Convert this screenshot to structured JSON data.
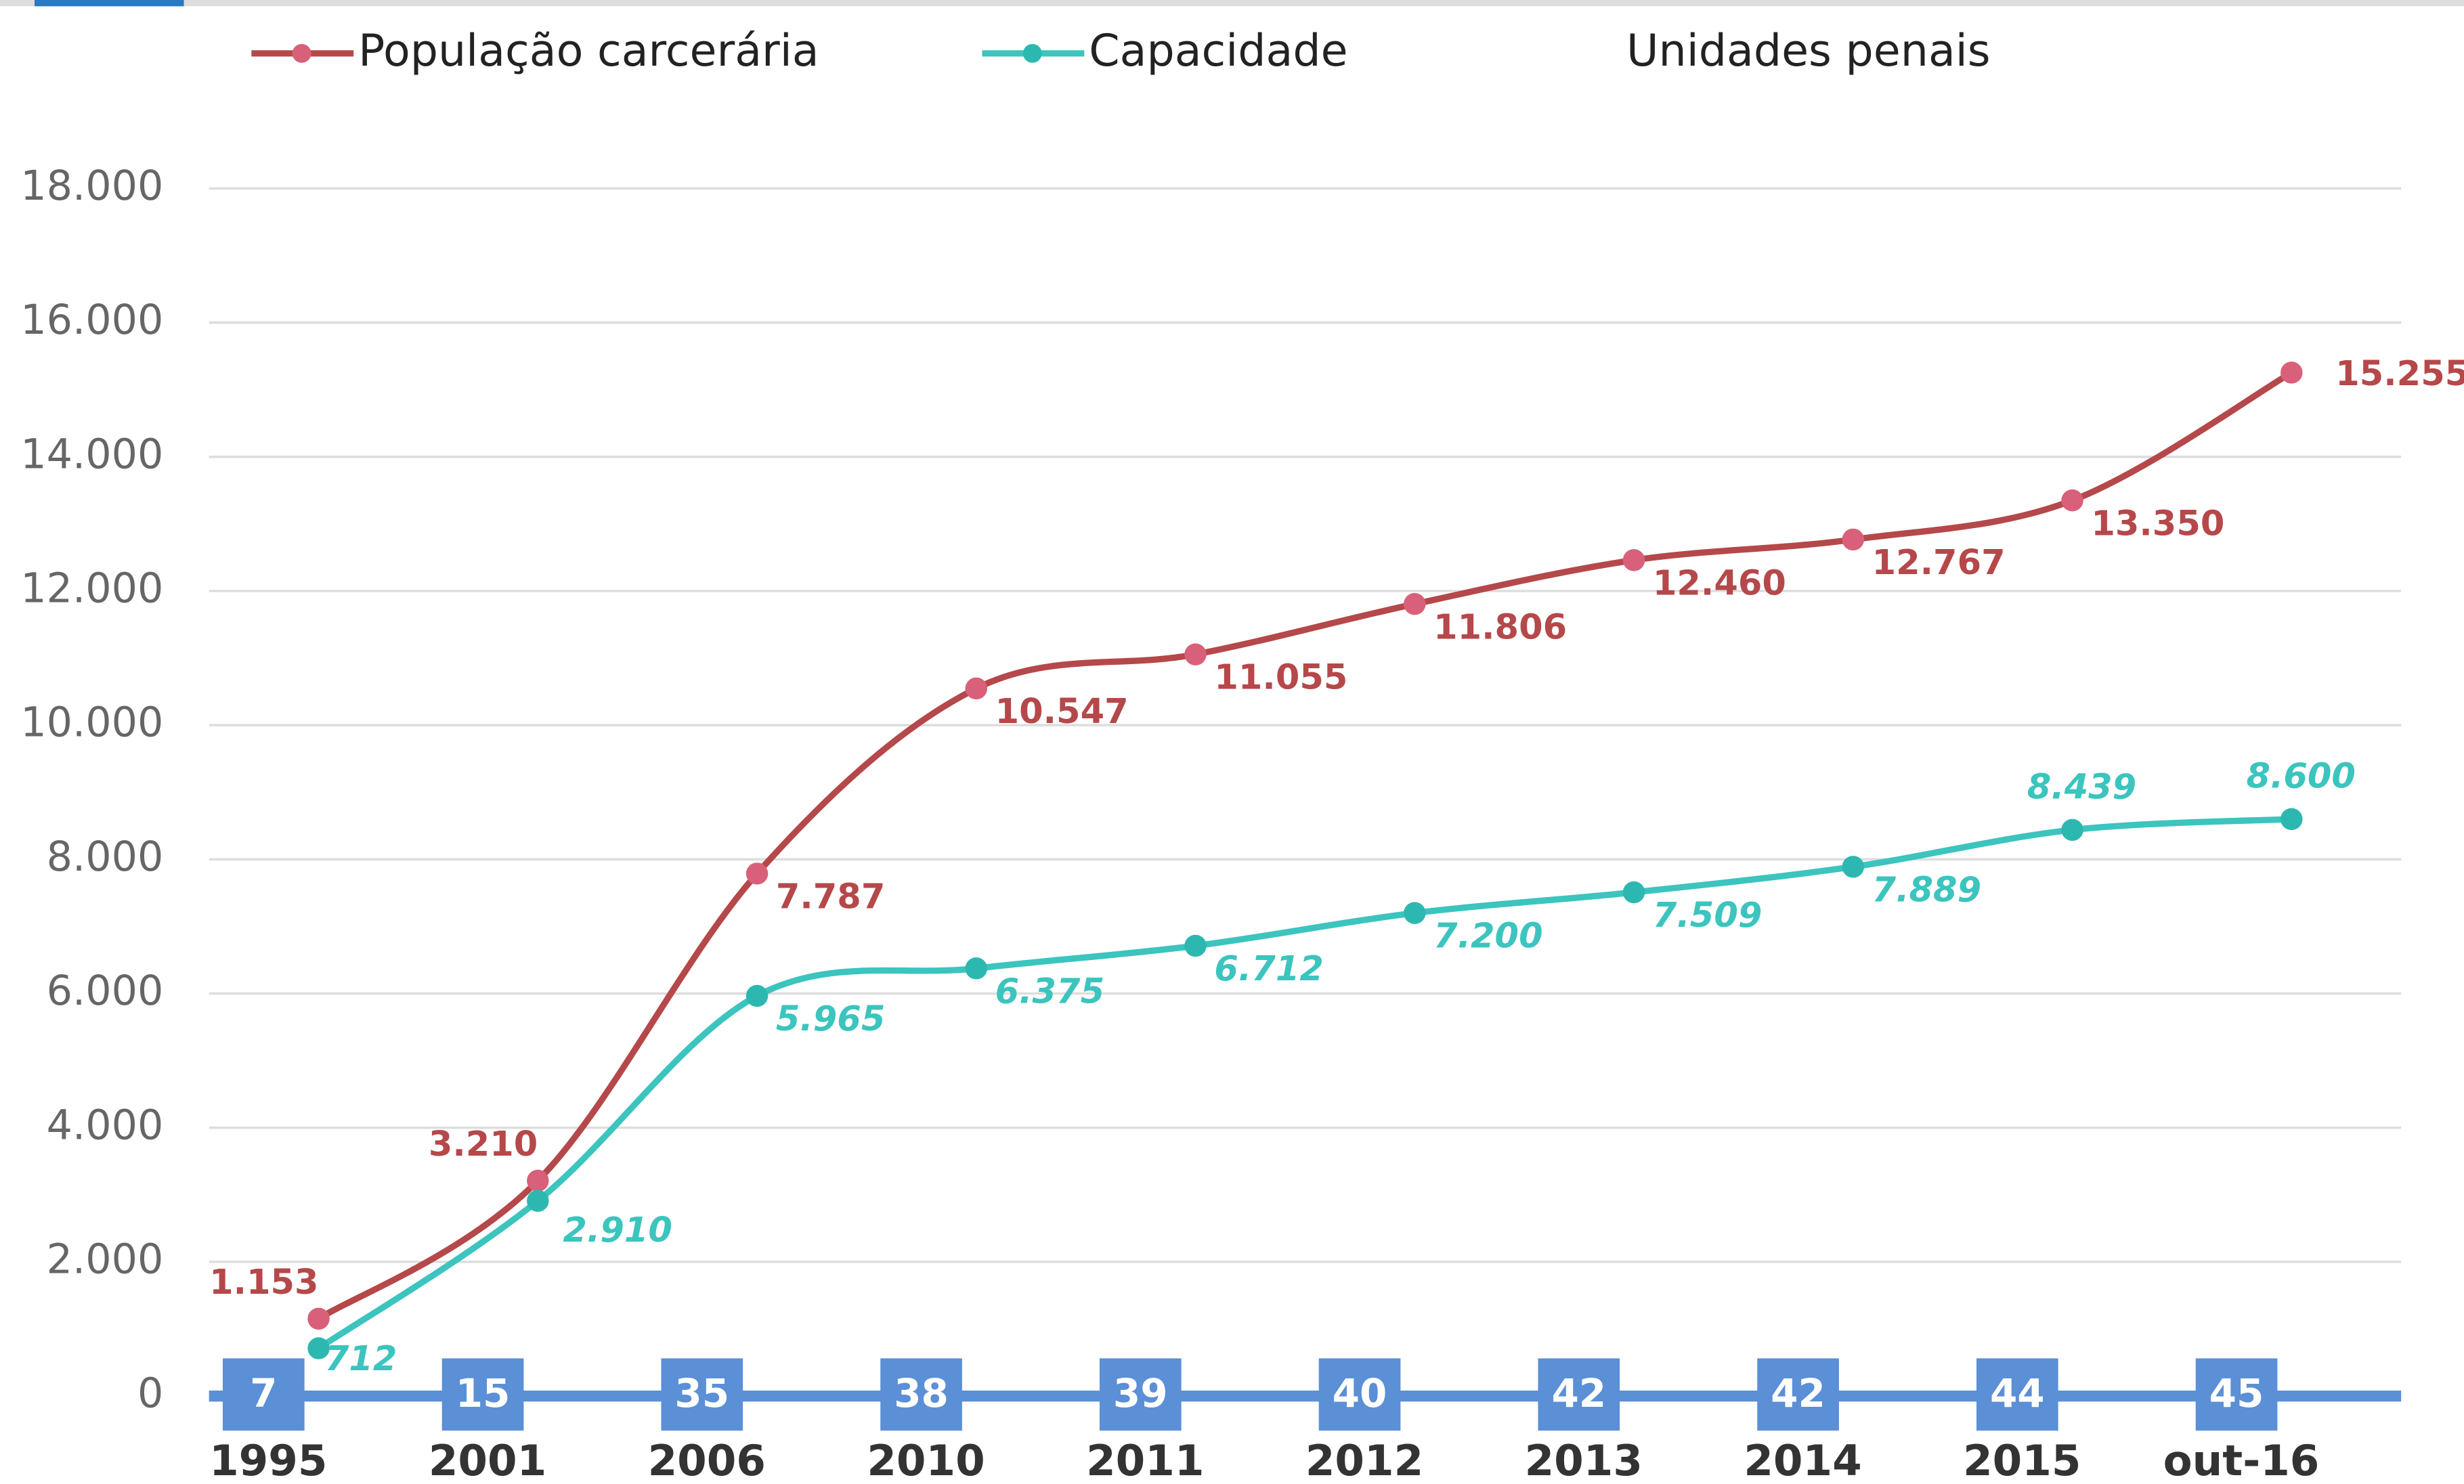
{
  "chart_data": {
    "type": "line",
    "categories": [
      "1995",
      "2001",
      "2006",
      "2010",
      "2011",
      "2012",
      "2013",
      "2014",
      "2015",
      "out-16"
    ],
    "series": [
      {
        "name": "População carcerária",
        "color": "#b5484a",
        "marker_color": "#d9607a",
        "values": [
          1153,
          3210,
          7787,
          10547,
          11055,
          11806,
          12460,
          12767,
          13350,
          15255
        ],
        "value_labels": [
          "1.153",
          "3.210",
          "7.787",
          "10.547",
          "11.055",
          "11.806",
          "12.460",
          "12.767",
          "13.350",
          "15.255"
        ]
      },
      {
        "name": "Capacidade",
        "color": "#3cc4be",
        "marker_color": "#2cb8b0",
        "values": [
          712,
          2910,
          5965,
          6375,
          6712,
          7200,
          7509,
          7889,
          8439,
          8600
        ],
        "value_labels": [
          "712",
          "2.910",
          "5.965",
          "6.375",
          "6.712",
          "7.200",
          "7.509",
          "7.889",
          "8.439",
          "8.600"
        ]
      },
      {
        "name": "Unidades penais",
        "color": "#5b8fd6",
        "values": [
          7,
          15,
          35,
          38,
          39,
          40,
          42,
          42,
          44,
          45
        ]
      }
    ],
    "ylim": [
      0,
      18000
    ],
    "yticks": [
      0,
      {
        "value": 2000,
        "label": "2.000"
      },
      {
        "value": 4000,
        "label": "4.000"
      },
      {
        "value": 6000,
        "label": "6.000"
      },
      {
        "value": 8000,
        "label": "8.000"
      },
      {
        "value": 10000,
        "label": "10.000"
      },
      {
        "value": 12000,
        "label": "12.000"
      },
      {
        "value": 14000,
        "label": "14.000"
      },
      {
        "value": 16000,
        "label": "16.000"
      },
      {
        "value": 18000,
        "label": "18.000"
      }
    ],
    "grid": true
  }
}
